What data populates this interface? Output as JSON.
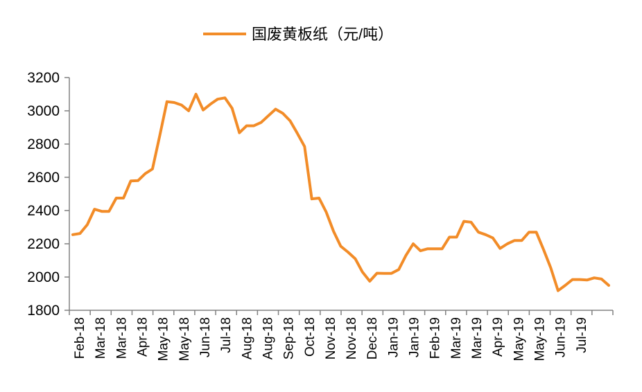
{
  "chart_data": {
    "type": "line",
    "title": "",
    "xlabel": "",
    "ylabel": "",
    "ylim": [
      1800,
      3200
    ],
    "y_ticks": [
      1800,
      2000,
      2200,
      2400,
      2600,
      2800,
      3000,
      3200
    ],
    "grid": false,
    "legend_position": "top",
    "x_tick_labels": [
      "Feb-18",
      "Mar-18",
      "Mar-18",
      "Apr-18",
      "May-18",
      "May-18",
      "Jun-18",
      "Jul-18",
      "Aug-18",
      "Aug-18",
      "Sep-18",
      "Oct-18",
      "Nov-18",
      "Nov-18",
      "Dec-18",
      "Jan-19",
      "Jan-19",
      "Feb-19",
      "Mar-19",
      "Mar-19",
      "Apr-19",
      "May-19",
      "May-19",
      "Jun-19",
      "Jul-19"
    ],
    "series": [
      {
        "name": "国废黄板纸（元/吨）",
        "color": "#F28C28",
        "values": [
          2255,
          2262,
          2315,
          2408,
          2395,
          2395,
          2475,
          2475,
          2578,
          2580,
          2622,
          2650,
          2850,
          3055,
          3050,
          3035,
          3000,
          3100,
          3005,
          3040,
          3070,
          3078,
          3015,
          2868,
          2910,
          2910,
          2930,
          2970,
          3010,
          2985,
          2940,
          2865,
          2785,
          2470,
          2475,
          2390,
          2275,
          2185,
          2150,
          2110,
          2030,
          1975,
          2023,
          2022,
          2022,
          2045,
          2130,
          2200,
          2158,
          2170,
          2170,
          2170,
          2240,
          2240,
          2335,
          2330,
          2270,
          2255,
          2235,
          2172,
          2200,
          2220,
          2220,
          2270,
          2270,
          2165,
          2055,
          1918,
          1950,
          1985,
          1985,
          1982,
          1995,
          1988,
          1950
        ]
      }
    ]
  }
}
